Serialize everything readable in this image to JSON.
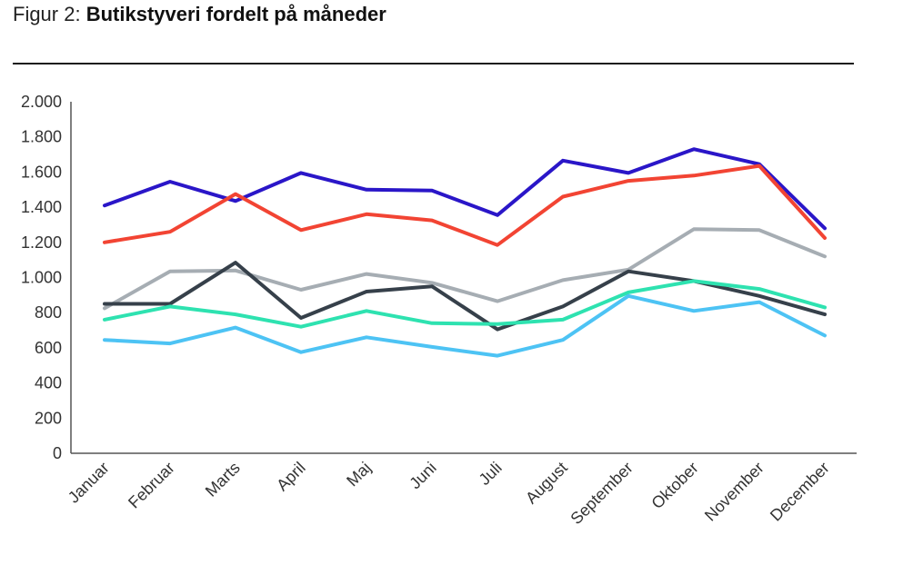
{
  "title": {
    "prefix": "Figur 2: ",
    "main": "Butikstyveri fordelt på måneder"
  },
  "chart_data": {
    "type": "line",
    "categories": [
      "Januar",
      "Februar",
      "Marts",
      "April",
      "Maj",
      "Juni",
      "Juli",
      "August",
      "September",
      "Oktober",
      "November",
      "December"
    ],
    "ylim": [
      0,
      2000
    ],
    "yticks": [
      0,
      200,
      400,
      600,
      800,
      1000,
      1200,
      1400,
      1600,
      1800,
      2000
    ],
    "ytick_labels": [
      "0",
      "200",
      "400",
      "600",
      "800",
      "1.000",
      "1.200",
      "1.400",
      "1.600",
      "1.800",
      "2.000"
    ],
    "grid": false,
    "legend": "none",
    "series": [
      {
        "color": "#2a16c8",
        "values": [
          1410,
          1545,
          1435,
          1595,
          1500,
          1495,
          1355,
          1665,
          1595,
          1730,
          1645,
          1280
        ]
      },
      {
        "color": "#f24433",
        "values": [
          1200,
          1260,
          1475,
          1270,
          1360,
          1325,
          1185,
          1460,
          1550,
          1580,
          1635,
          1225
        ]
      },
      {
        "color": "#a6adb3",
        "values": [
          825,
          1035,
          1040,
          930,
          1020,
          970,
          865,
          985,
          1045,
          1275,
          1270,
          1120
        ]
      },
      {
        "color": "#36404a",
        "values": [
          850,
          850,
          1085,
          770,
          920,
          950,
          705,
          835,
          1035,
          980,
          895,
          790
        ]
      },
      {
        "color": "#2ee2b0",
        "values": [
          760,
          835,
          790,
          720,
          810,
          740,
          735,
          760,
          915,
          980,
          935,
          830
        ]
      },
      {
        "color": "#4dc3f4",
        "values": [
          645,
          625,
          715,
          575,
          660,
          605,
          555,
          645,
          895,
          810,
          860,
          670
        ]
      }
    ]
  }
}
